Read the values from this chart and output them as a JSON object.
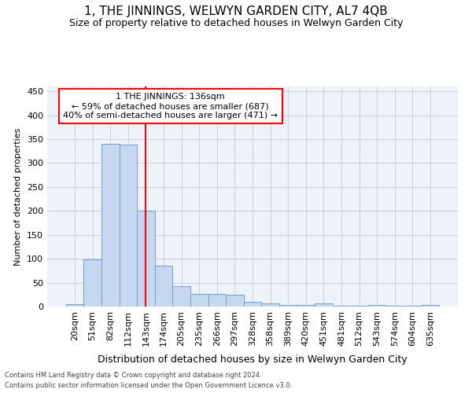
{
  "title": "1, THE JINNINGS, WELWYN GARDEN CITY, AL7 4QB",
  "subtitle": "Size of property relative to detached houses in Welwyn Garden City",
  "xlabel": "Distribution of detached houses by size in Welwyn Garden City",
  "ylabel": "Number of detached properties",
  "categories": [
    "20sqm",
    "51sqm",
    "82sqm",
    "112sqm",
    "143sqm",
    "174sqm",
    "205sqm",
    "235sqm",
    "266sqm",
    "297sqm",
    "328sqm",
    "358sqm",
    "389sqm",
    "420sqm",
    "451sqm",
    "481sqm",
    "512sqm",
    "543sqm",
    "574sqm",
    "604sqm",
    "635sqm"
  ],
  "values": [
    5,
    98,
    340,
    338,
    200,
    85,
    42,
    27,
    27,
    24,
    10,
    6,
    4,
    4,
    6,
    1,
    1,
    4,
    1,
    1,
    3
  ],
  "bar_color": "#c5d8f0",
  "bar_edge_color": "#6fa0cc",
  "vline_color": "red",
  "vline_x": 4,
  "annotation_text": "1 THE JINNINGS: 136sqm\n← 59% of detached houses are smaller (687)\n40% of semi-detached houses are larger (471) →",
  "annotation_box_color": "white",
  "annotation_box_edge": "red",
  "ylim": [
    0,
    460
  ],
  "yticks": [
    0,
    50,
    100,
    150,
    200,
    250,
    300,
    350,
    400,
    450
  ],
  "background_color": "#eef2fb",
  "grid_color": "#c8d0e0",
  "footer_line1": "Contains HM Land Registry data © Crown copyright and database right 2024.",
  "footer_line2": "Contains public sector information licensed under the Open Government Licence v3.0.",
  "title_fontsize": 11,
  "subtitle_fontsize": 9,
  "xlabel_fontsize": 9,
  "ylabel_fontsize": 8,
  "tick_fontsize": 8,
  "annot_fontsize": 8,
  "footer_fontsize": 6
}
